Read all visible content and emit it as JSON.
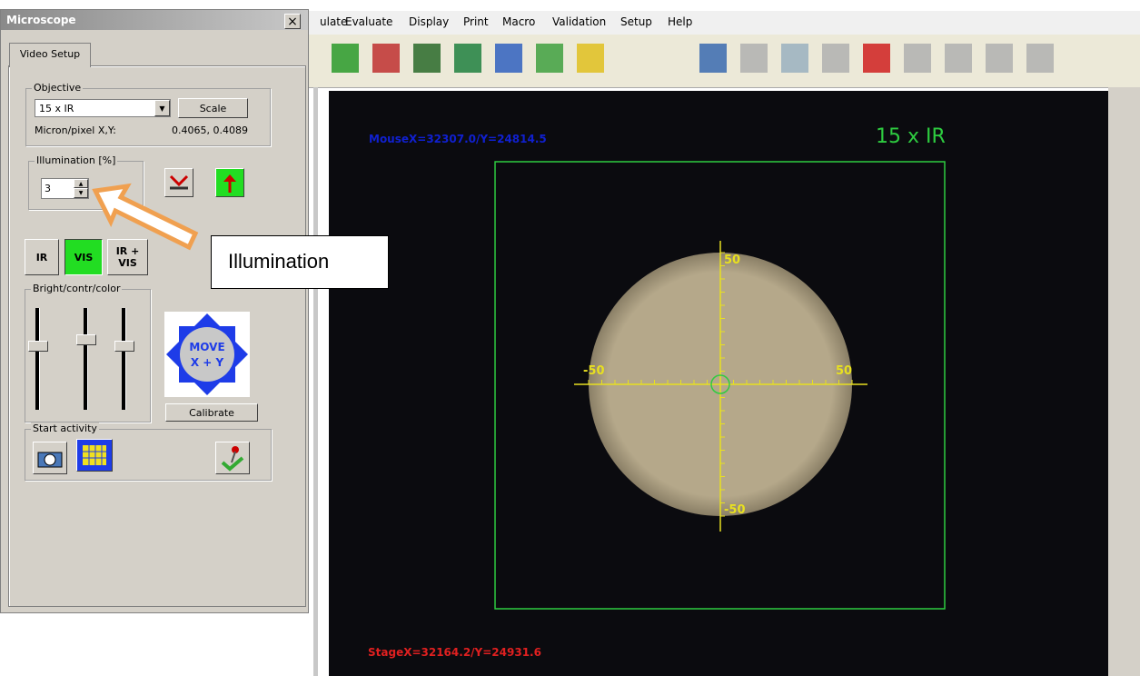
{
  "window": {
    "title": "Microscope",
    "close": "×"
  },
  "menu": [
    "ulate",
    "Evaluate",
    "Display",
    "Print",
    "Macro",
    "Validation",
    "Setup",
    "Help"
  ],
  "panel": {
    "tab": "Video Setup",
    "objective": {
      "label": "Objective",
      "value": "15 x IR",
      "scale_button": "Scale",
      "micron_label": "Micron/pixel X,Y:",
      "micron_value": "0.4065, 0.4089"
    },
    "illumination": {
      "label": "Illumination [%]",
      "value": "3"
    },
    "mode_buttons": [
      "IR",
      "VIS",
      "IR + VIS"
    ],
    "bright_label": "Bright/contr/color",
    "move": [
      "MOVE",
      "X + Y"
    ],
    "calibrate": "Calibrate",
    "start_label": "Start activity"
  },
  "callout": "Illumination",
  "video": {
    "mouse": "MouseX=32307.0/Y=24814.5",
    "objective": "15 x IR",
    "axis_labels": [
      "50",
      "-50",
      "50",
      "-50"
    ],
    "stage": "StageX=32164.2/Y=24931.6"
  }
}
